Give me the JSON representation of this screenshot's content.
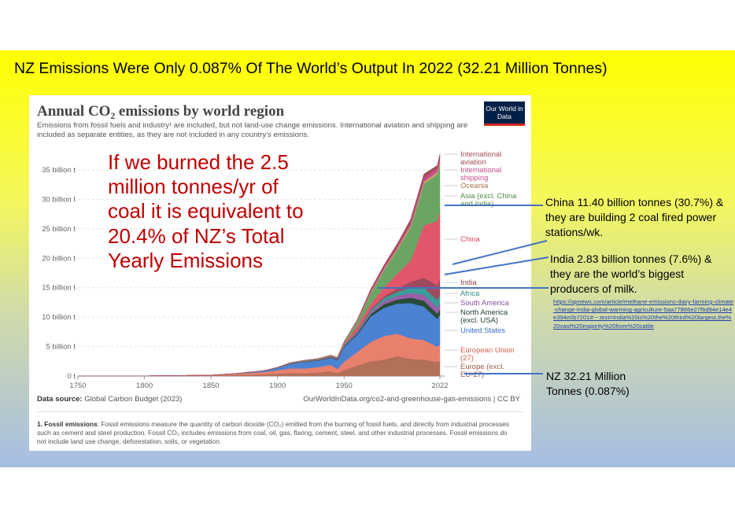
{
  "slide": {
    "title": "NZ Emissions Were Only 0.087% Of The World’s Output In 2022 (32.21 Million Tonnes)",
    "overlay_text": "If we burned the 2.5 million tonnes/yr of coal it is equivalent to 20.4% of NZ’s Total Yearly Emissions",
    "annotations": {
      "china": "China 11.40 billion tonnes (30.7%) & they are building 2 coal fired power stations/wk.",
      "india": "India 2.83 billion tonnes (7.6%) & they are the world’s biggest producers of milk.",
      "india_link": "https://apnews.com/article/methane-emissions-dairy-farming-climate-change-india-global-warming-agriculture-5aa77866e27f6d94e14e4e394e0b7201#:~:text=India%20is%20the%20third%20largest,the%20vast%20majority%20from%20cattle",
      "nz": "NZ 32.21 Million Tonnes (0.087%)"
    },
    "colors": {
      "background_top": "#ffff00",
      "background_bottom": "#a6bde3",
      "overlay_text": "#c00000",
      "callout_line": "#4472c4",
      "link": "#1f3faa"
    }
  },
  "chart": {
    "title": "Annual CO₂ emissions by world region",
    "subtitle": "Emissions from fossil fuels and industry¹ are included, but not land-use change emissions. International aviation and shipping are included as separate entities, as they are not included in any country's emissions.",
    "logo_text": "Our World in Data",
    "data_source_label": "Data source:",
    "data_source": "Global Carbon Budget (2023)",
    "url": "OurWorldInData.org/co2-and-greenhouse-gas-emissions | CC BY",
    "footnote_label": "1. Fossil emissions",
    "footnote": ": Fossil emissions measure the quantity of carbon dioxide (CO₂) emitted from the burning of fossil fuels, and directly from industrial processes such as cement and steel production. Fossil CO₂ includes emissions from coal, oil, gas, flaring, cement, steel, and other industrial processes. Fossil emissions do not include land use change, deforestation, soils, or vegetation."
  },
  "chart_data": {
    "type": "area",
    "stacked": true,
    "x": [
      1750,
      1800,
      1850,
      1870,
      1890,
      1900,
      1910,
      1920,
      1930,
      1940,
      1945,
      1950,
      1960,
      1970,
      1980,
      1990,
      2000,
      2010,
      2020,
      2022
    ],
    "yticks": [
      "0 t",
      "5 billion t",
      "10 billion t",
      "15 billion t",
      "20 billion t",
      "25 billion t",
      "30 billion t",
      "35 billion t"
    ],
    "ylim": [
      0,
      37
    ],
    "xticks": [
      1750,
      1800,
      1850,
      1900,
      1950,
      2022
    ],
    "series": [
      {
        "name": "Europe (excl. EU-27)",
        "color": "#b37058",
        "values": [
          0.01,
          0.03,
          0.1,
          0.2,
          0.3,
          0.4,
          0.5,
          0.5,
          0.6,
          0.8,
          0.5,
          1.0,
          1.8,
          2.5,
          2.8,
          3.4,
          2.9,
          2.8,
          2.4,
          2.5
        ]
      },
      {
        "name": "European Union (27)",
        "color": "#e8806e",
        "values": [
          0.0,
          0.0,
          0.05,
          0.2,
          0.4,
          0.6,
          0.8,
          0.8,
          0.9,
          1.1,
          0.7,
          1.4,
          2.3,
          3.3,
          4.0,
          3.8,
          3.5,
          3.3,
          2.6,
          2.8
        ]
      },
      {
        "name": "United States",
        "color": "#4c82d2",
        "values": [
          0.0,
          0.0,
          0.0,
          0.05,
          0.2,
          0.4,
          0.8,
          1.1,
          1.1,
          1.2,
          1.5,
          2.5,
          2.9,
          4.3,
          4.8,
          5.1,
          6.0,
          5.7,
          4.7,
          5.1
        ]
      },
      {
        "name": "North America (excl. USA)",
        "color": "#284c38",
        "values": [
          0,
          0,
          0,
          0,
          0.01,
          0.02,
          0.05,
          0.06,
          0.07,
          0.08,
          0.1,
          0.12,
          0.2,
          0.4,
          0.6,
          0.7,
          0.9,
          1.0,
          0.9,
          0.9
        ]
      },
      {
        "name": "South America",
        "color": "#9a5fa8",
        "values": [
          0,
          0,
          0,
          0,
          0,
          0.01,
          0.02,
          0.03,
          0.04,
          0.06,
          0.08,
          0.1,
          0.2,
          0.3,
          0.5,
          0.6,
          0.8,
          1.0,
          1.0,
          1.1
        ]
      },
      {
        "name": "Africa",
        "color": "#3a9c96",
        "values": [
          0,
          0,
          0,
          0,
          0,
          0.01,
          0.02,
          0.03,
          0.04,
          0.05,
          0.06,
          0.1,
          0.2,
          0.35,
          0.55,
          0.7,
          0.9,
          1.2,
          1.3,
          1.4
        ]
      },
      {
        "name": "India",
        "color": "#9e4a5e",
        "values": [
          0,
          0,
          0,
          0,
          0,
          0.01,
          0.02,
          0.03,
          0.04,
          0.05,
          0.06,
          0.1,
          0.1,
          0.2,
          0.3,
          0.6,
          1.0,
          1.7,
          2.5,
          2.8
        ]
      },
      {
        "name": "China",
        "color": "#e0576c",
        "values": [
          0,
          0,
          0,
          0,
          0,
          0,
          0.01,
          0.02,
          0.03,
          0.04,
          0.05,
          0.1,
          0.8,
          0.9,
          1.5,
          2.5,
          3.6,
          8.9,
          10.9,
          11.4
        ]
      },
      {
        "name": "Asia (excl. China and India)",
        "color": "#6ba563",
        "values": [
          0,
          0,
          0,
          0,
          0.01,
          0.02,
          0.05,
          0.06,
          0.08,
          0.1,
          0.05,
          0.3,
          0.8,
          1.8,
          2.9,
          4.0,
          5.6,
          7.0,
          7.9,
          8.0
        ]
      },
      {
        "name": "Oceania",
        "color": "#c79f6e",
        "values": [
          0,
          0,
          0,
          0,
          0,
          0.01,
          0.01,
          0.02,
          0.02,
          0.03,
          0.03,
          0.05,
          0.1,
          0.15,
          0.25,
          0.3,
          0.4,
          0.45,
          0.45,
          0.45
        ]
      },
      {
        "name": "International shipping",
        "color": "#c24e8a",
        "values": [
          0,
          0,
          0,
          0,
          0,
          0,
          0.01,
          0.02,
          0.02,
          0.03,
          0.03,
          0.05,
          0.15,
          0.35,
          0.35,
          0.4,
          0.5,
          0.7,
          0.7,
          0.7
        ]
      },
      {
        "name": "International aviation",
        "color": "#a04b56",
        "values": [
          0,
          0,
          0,
          0,
          0,
          0,
          0,
          0,
          0,
          0,
          0.01,
          0.02,
          0.05,
          0.2,
          0.3,
          0.4,
          0.5,
          0.55,
          0.4,
          0.5
        ]
      }
    ],
    "legend_placement": "right",
    "legend": [
      {
        "label": "International aviation",
        "color": "#a04b56"
      },
      {
        "label": "International shipping",
        "color": "#c24e8a"
      },
      {
        "label": "Oceania",
        "color": "#a8764b"
      },
      {
        "label": "Asia (excl. China and India)",
        "color": "#4e8a47"
      },
      {
        "label": "China",
        "color": "#d84a60"
      },
      {
        "label": "India",
        "color": "#8a3f52"
      },
      {
        "label": "Africa",
        "color": "#2f8a83"
      },
      {
        "label": "South America",
        "color": "#8a4f9c"
      },
      {
        "label": "North America (excl. USA)",
        "color": "#203f2e"
      },
      {
        "label": "United States",
        "color": "#3a6fc4"
      },
      {
        "label": "European Union (27)",
        "color": "#d9614f"
      },
      {
        "label": "Europe (excl. EU-27)",
        "color": "#9c5d48"
      }
    ],
    "grid": true
  }
}
